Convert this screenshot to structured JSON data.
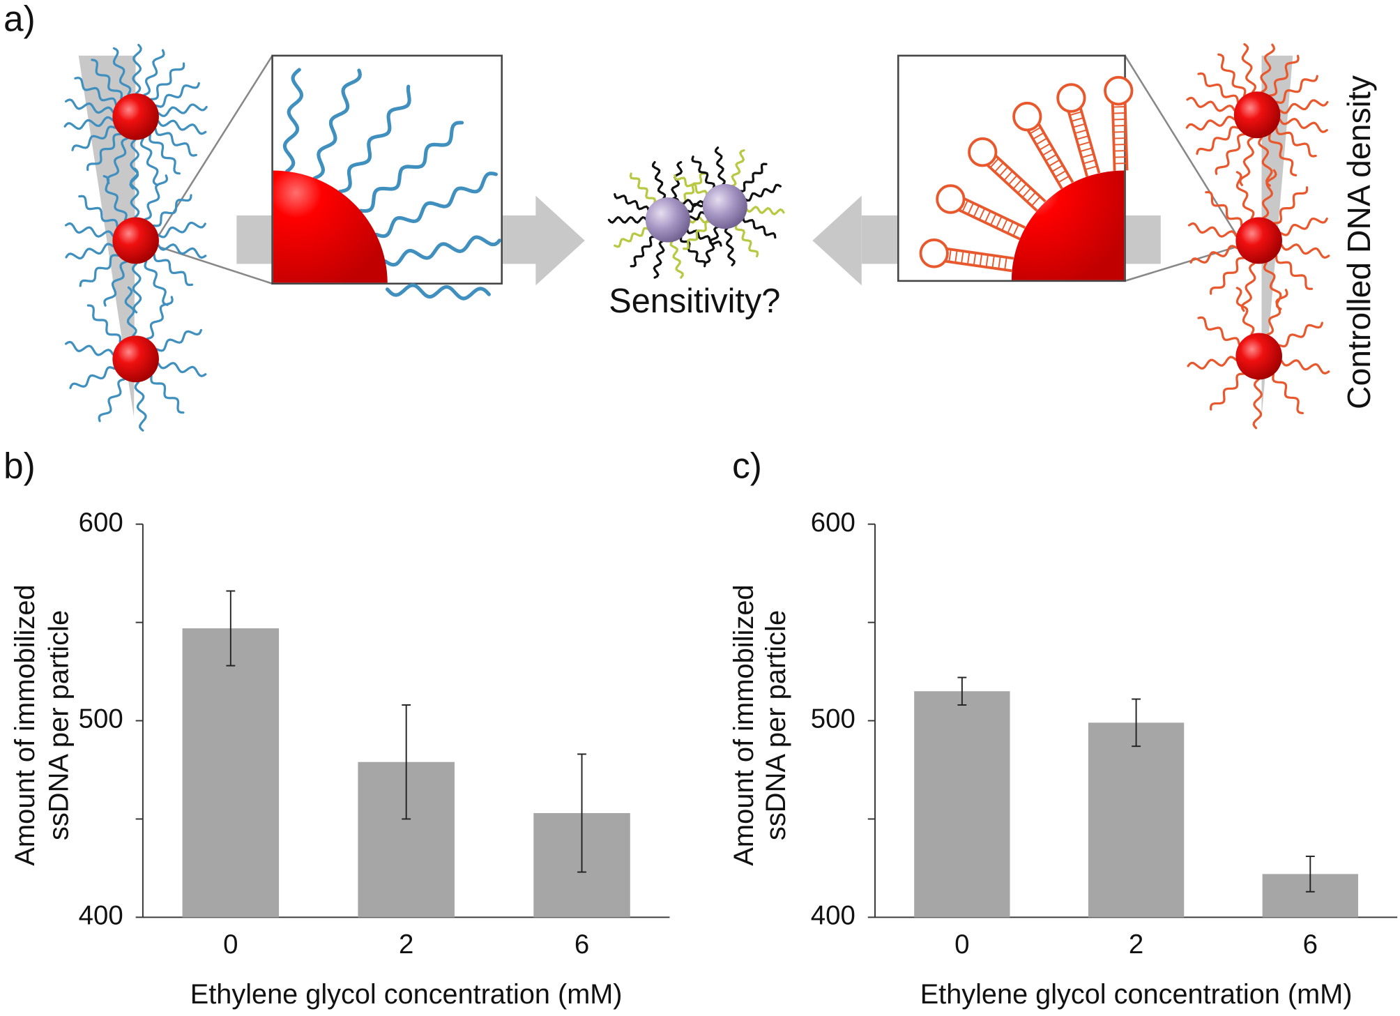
{
  "panels": [
    "a)",
    "b)",
    "c)"
  ],
  "diagram": {
    "label": "Sensitivity?",
    "side_label": "Controlled DNA density"
  },
  "chart_data": [
    {
      "type": "bar",
      "categories": [
        "0",
        "2",
        "6"
      ],
      "values": [
        547,
        479,
        453
      ],
      "errors": [
        19,
        29,
        30
      ],
      "color": "#a6a6a6",
      "ylim": [
        400,
        600
      ],
      "yticks": [
        400,
        500,
        600
      ],
      "minor_yticks": [
        450,
        550
      ],
      "xlabel": "Ethylene glycol concentration (mM)",
      "ylabel": [
        "Amount of  immobilized",
        "ssDNA per particle"
      ]
    },
    {
      "type": "bar",
      "categories": [
        "0",
        "2",
        "6"
      ],
      "values": [
        515,
        499,
        422
      ],
      "errors": [
        7,
        12,
        9
      ],
      "color": "#a6a6a6",
      "ylim": [
        400,
        600
      ],
      "yticks": [
        400,
        500,
        600
      ],
      "minor_yticks": [
        450,
        550
      ],
      "xlabel": "Ethylene glycol concentration (mM)",
      "ylabel": [
        "Amount of  immobilized",
        "ssDNA per particle"
      ]
    }
  ]
}
